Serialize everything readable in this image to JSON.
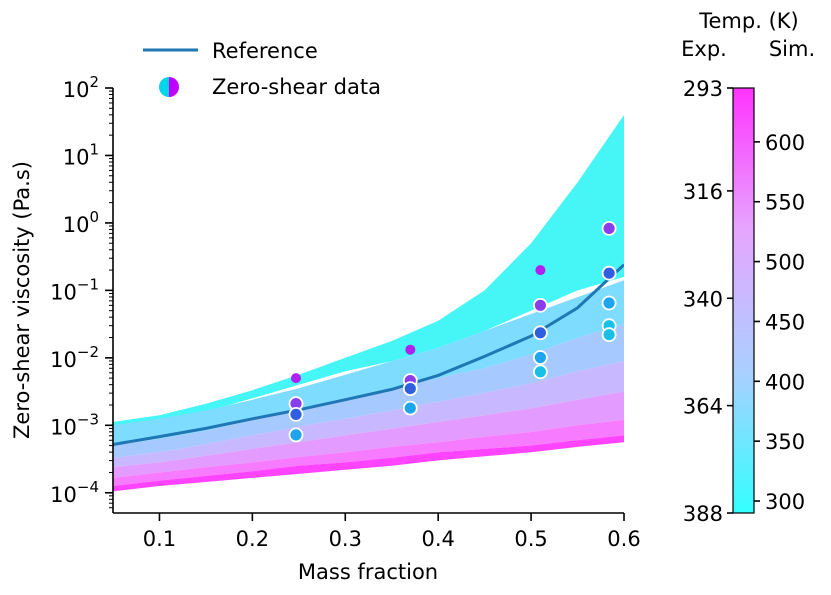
{
  "chart_data": {
    "type": "scatter",
    "xlabel": "Mass fraction",
    "ylabel": "Zero-shear viscosity (Pa.s)",
    "xlim": [
      0.05,
      0.6
    ],
    "ylim_log10": [
      -4.3,
      2
    ],
    "x_scale": "linear",
    "y_scale": "log",
    "x_ticks": [
      0.1,
      0.2,
      0.3,
      0.4,
      0.5,
      0.6
    ],
    "x_tick_labels": [
      "0.1",
      "0.2",
      "0.3",
      "0.4",
      "0.5",
      "0.6"
    ],
    "y_ticks_log10": [
      -4,
      -3,
      -2,
      -1,
      0,
      1,
      2
    ],
    "y_tick_labels": [
      {
        "base": "10",
        "exp": "−4"
      },
      {
        "base": "10",
        "exp": "−3"
      },
      {
        "base": "10",
        "exp": "−2"
      },
      {
        "base": "10",
        "exp": "−1"
      },
      {
        "base": "10",
        "exp": "0"
      },
      {
        "base": "10",
        "exp": "1"
      },
      {
        "base": "10",
        "exp": "2"
      }
    ],
    "grid": false,
    "legend_placement": "top-left, outside",
    "legend": [
      {
        "label": "Reference",
        "marker": "line",
        "color": "#1f77b4"
      },
      {
        "label": "Zero-shear data",
        "marker": "half-circle",
        "colors": [
          "#00d4e8",
          "#c000ff"
        ]
      }
    ],
    "reference_curve": {
      "name": "Reference",
      "color": "#1f77b4",
      "points": [
        [
          0.05,
          0.00052
        ],
        [
          0.1,
          0.00068
        ],
        [
          0.15,
          0.0009
        ],
        [
          0.2,
          0.00125
        ],
        [
          0.25,
          0.0017
        ],
        [
          0.3,
          0.0024
        ],
        [
          0.35,
          0.0034
        ],
        [
          0.4,
          0.0055
        ],
        [
          0.45,
          0.0105
        ],
        [
          0.5,
          0.021
        ],
        [
          0.55,
          0.055
        ],
        [
          0.6,
          0.24
        ]
      ]
    },
    "shaded_bands": {
      "note": "simulation envelopes coloured by temperature",
      "bands": [
        {
          "color": "#46f5f5",
          "lower_log10": [
            -3.05,
            -2.95,
            -2.8,
            -2.6,
            -2.4,
            -2.2,
            -2.05,
            -1.85,
            -1.6,
            -1.3,
            -1.0,
            -0.8
          ],
          "upper_log10": [
            -2.95,
            -2.85,
            -2.68,
            -2.48,
            -2.25,
            -2.0,
            -1.75,
            -1.45,
            -1.0,
            -0.3,
            0.6,
            1.6
          ]
        },
        {
          "color": "#7ddcff",
          "lower_log10": [
            -3.3,
            -3.2,
            -3.08,
            -2.92,
            -2.75,
            -2.6,
            -2.45,
            -2.3,
            -2.15,
            -1.95,
            -1.7,
            -1.5
          ],
          "upper_log10": [
            -3.0,
            -2.9,
            -2.78,
            -2.62,
            -2.45,
            -2.25,
            -2.05,
            -1.85,
            -1.6,
            -1.35,
            -1.1,
            -0.85
          ]
        },
        {
          "color": "#a6c9ff",
          "lower_log10": [
            -3.48,
            -3.4,
            -3.28,
            -3.15,
            -3.02,
            -2.9,
            -2.78,
            -2.65,
            -2.52,
            -2.38,
            -2.2,
            -2.05
          ],
          "upper_log10": [
            -3.3,
            -3.2,
            -3.08,
            -2.92,
            -2.75,
            -2.6,
            -2.45,
            -2.3,
            -2.15,
            -1.95,
            -1.7,
            -1.5
          ]
        },
        {
          "color": "#c8b8ff",
          "lower_log10": [
            -3.62,
            -3.55,
            -3.45,
            -3.35,
            -3.25,
            -3.15,
            -3.05,
            -2.95,
            -2.85,
            -2.75,
            -2.62,
            -2.5
          ],
          "upper_log10": [
            -3.48,
            -3.4,
            -3.28,
            -3.15,
            -3.02,
            -2.9,
            -2.78,
            -2.65,
            -2.52,
            -2.38,
            -2.2,
            -2.05
          ]
        },
        {
          "color": "#e39bff",
          "lower_log10": [
            -3.78,
            -3.7,
            -3.62,
            -3.55,
            -3.47,
            -3.4,
            -3.32,
            -3.25,
            -3.17,
            -3.1,
            -3.0,
            -2.92
          ],
          "upper_log10": [
            -3.62,
            -3.55,
            -3.45,
            -3.35,
            -3.25,
            -3.15,
            -3.05,
            -2.95,
            -2.85,
            -2.75,
            -2.62,
            -2.5
          ]
        },
        {
          "color": "#f77bff",
          "lower_log10": [
            -3.9,
            -3.82,
            -3.75,
            -3.68,
            -3.6,
            -3.55,
            -3.48,
            -3.4,
            -3.35,
            -3.3,
            -3.22,
            -3.15
          ],
          "upper_log10": [
            -3.78,
            -3.7,
            -3.62,
            -3.55,
            -3.47,
            -3.4,
            -3.32,
            -3.25,
            -3.17,
            -3.1,
            -3.0,
            -2.92
          ]
        },
        {
          "color": "#ff44ff",
          "lower_log10": [
            -3.98,
            -3.9,
            -3.84,
            -3.78,
            -3.72,
            -3.66,
            -3.6,
            -3.52,
            -3.46,
            -3.4,
            -3.32,
            -3.25
          ],
          "upper_log10": [
            -3.9,
            -3.82,
            -3.75,
            -3.68,
            -3.6,
            -3.55,
            -3.48,
            -3.4,
            -3.35,
            -3.3,
            -3.22,
            -3.15
          ]
        }
      ],
      "x": [
        0.05,
        0.1,
        0.15,
        0.2,
        0.25,
        0.3,
        0.35,
        0.4,
        0.45,
        0.5,
        0.55,
        0.6
      ]
    },
    "points": [
      {
        "x": 0.247,
        "y": 0.005,
        "color": "#b020f0",
        "outlined": false
      },
      {
        "x": 0.247,
        "y": 0.0021,
        "color": "#8a3dec",
        "outlined": true
      },
      {
        "x": 0.247,
        "y": 0.00145,
        "color": "#2f5fe0",
        "outlined": true
      },
      {
        "x": 0.247,
        "y": 0.00072,
        "color": "#1fa4f0",
        "outlined": true
      },
      {
        "x": 0.37,
        "y": 0.0132,
        "color": "#b020f0",
        "outlined": false
      },
      {
        "x": 0.37,
        "y": 0.0046,
        "color": "#8a3dec",
        "outlined": true
      },
      {
        "x": 0.37,
        "y": 0.0035,
        "color": "#2f5fe0",
        "outlined": true
      },
      {
        "x": 0.37,
        "y": 0.0018,
        "color": "#1fa4f0",
        "outlined": true
      },
      {
        "x": 0.51,
        "y": 0.2,
        "color": "#b020f0",
        "outlined": false
      },
      {
        "x": 0.51,
        "y": 0.06,
        "color": "#8a3dec",
        "outlined": true
      },
      {
        "x": 0.51,
        "y": 0.0235,
        "color": "#2f5fe0",
        "outlined": true
      },
      {
        "x": 0.51,
        "y": 0.0101,
        "color": "#1fa4f0",
        "outlined": true
      },
      {
        "x": 0.51,
        "y": 0.0062,
        "color": "#18c0e8",
        "outlined": true
      },
      {
        "x": 0.584,
        "y": 0.83,
        "color": "#8a3dec",
        "outlined": true
      },
      {
        "x": 0.584,
        "y": 0.18,
        "color": "#2f5fe0",
        "outlined": true
      },
      {
        "x": 0.584,
        "y": 0.065,
        "color": "#1fa4f0",
        "outlined": true
      },
      {
        "x": 0.584,
        "y": 0.03,
        "color": "#18c0e8",
        "outlined": true
      },
      {
        "x": 0.584,
        "y": 0.022,
        "color": "#18c0e8",
        "outlined": true
      }
    ],
    "colorbar": {
      "title": "Temp. (K)",
      "left_header": "Exp.",
      "right_header": "Sim.",
      "gradient": [
        "#ff33ff",
        "#e6a6ff",
        "#aacfff",
        "#33ffff"
      ],
      "exp_range": [
        293,
        388
      ],
      "exp_ticks": [
        "293",
        "316",
        "340",
        "364",
        "388"
      ],
      "sim_range": [
        645,
        290
      ],
      "sim_ticks": [
        "600",
        "550",
        "500",
        "450",
        "400",
        "350",
        "300"
      ]
    }
  }
}
